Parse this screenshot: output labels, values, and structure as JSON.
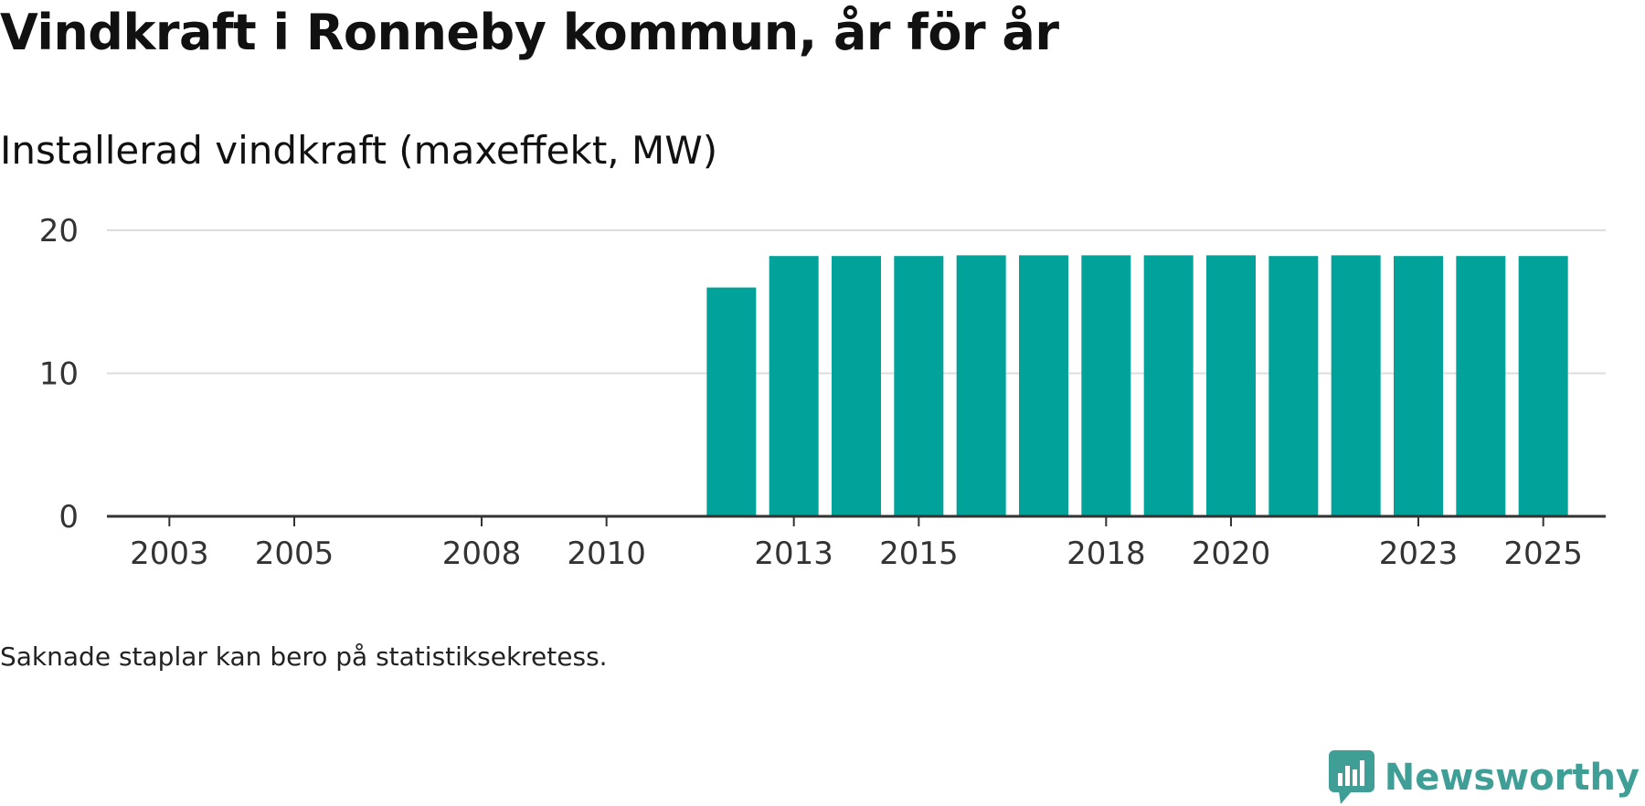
{
  "title": "Vindkraft i Ronneby kommun, år för år",
  "subtitle": "Installerad vindkraft (maxeffekt, MW)",
  "footnote": "Saknade staplar kan bero på statistiksekretess.",
  "logo": {
    "text": "Newsworthy",
    "icon": "newsworthy-chat-bars-icon",
    "color": "#3f9e95"
  },
  "chart_data": {
    "type": "bar",
    "title": "Installerad vindkraft (maxeffekt, MW)",
    "xlabel": "",
    "ylabel": "MW",
    "ylim": [
      0,
      20
    ],
    "yticks": [
      0,
      10,
      20
    ],
    "xticks": [
      2003,
      2005,
      2008,
      2010,
      2013,
      2015,
      2018,
      2020,
      2023,
      2025
    ],
    "xrange": [
      2002,
      2026
    ],
    "bar_color": "#00a29a",
    "grid": true,
    "categories": [
      2012,
      2013,
      2014,
      2015,
      2016,
      2017,
      2018,
      2019,
      2020,
      2021,
      2022,
      2023,
      2024,
      2025
    ],
    "values": [
      16.0,
      18.2,
      18.2,
      18.2,
      18.25,
      18.25,
      18.25,
      18.25,
      18.25,
      18.2,
      18.25,
      18.2,
      18.2,
      18.2
    ]
  }
}
